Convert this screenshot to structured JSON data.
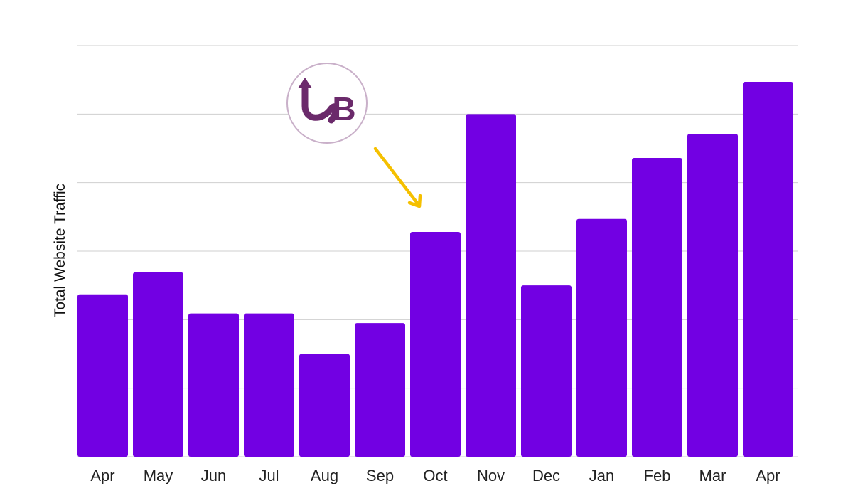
{
  "chart_data": {
    "type": "bar",
    "title": "",
    "xlabel": "",
    "ylabel": "Total Website Traffic",
    "categories": [
      "Apr",
      "May",
      "Jun",
      "Jul",
      "Aug",
      "Sep",
      "Oct",
      "Nov",
      "Dec",
      "Jan",
      "Feb",
      "Mar",
      "Apr"
    ],
    "values": [
      2.37,
      2.69,
      2.09,
      2.09,
      1.5,
      1.95,
      3.28,
      5.0,
      2.5,
      3.47,
      4.36,
      4.71,
      5.47
    ],
    "ylim": [
      0,
      6
    ],
    "y_tick_labels_shown": false,
    "grid": true,
    "legend": "none",
    "bar_color": "#7200e3",
    "annotation": {
      "type": "arrow",
      "color": "#f5c000",
      "points_to_category": "Oct"
    },
    "logo": {
      "text": "UB",
      "color": "#6b2a6b",
      "ring_color": "#c9b0c9"
    }
  }
}
